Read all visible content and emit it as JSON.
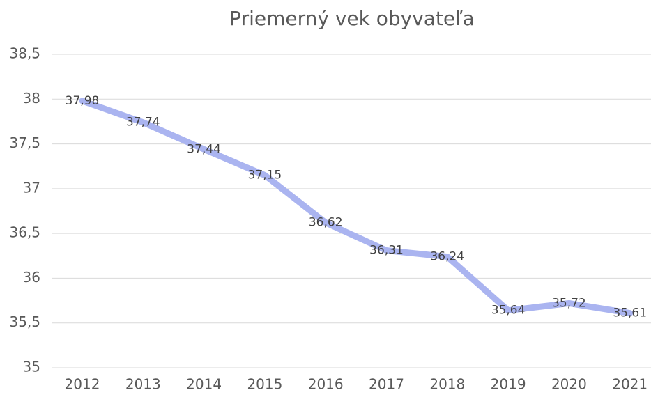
{
  "chart_data": {
    "type": "line",
    "title": "Priemerný vek obyvateľa",
    "categories": [
      "2012",
      "2013",
      "2014",
      "2015",
      "2016",
      "2017",
      "2018",
      "2019",
      "2020",
      "2021"
    ],
    "values": [
      37.98,
      37.74,
      37.44,
      37.15,
      36.62,
      36.31,
      36.24,
      35.64,
      35.72,
      35.61
    ],
    "value_labels": [
      "37,98",
      "37,74",
      "37,44",
      "37,15",
      "36,62",
      "36,31",
      "36,24",
      "35,64",
      "35,72",
      "35,61"
    ],
    "color": "#aab4f0",
    "ylim": [
      35,
      38.5
    ],
    "yticks": [
      35,
      {
        "value": 35.5,
        "label": "35,5"
      },
      36,
      {
        "value": 36.5,
        "label": "36,5"
      },
      37,
      {
        "value": 37.5,
        "label": "37,5"
      },
      38,
      {
        "value": 38.5,
        "label": "38,5"
      }
    ],
    "grid": true
  }
}
